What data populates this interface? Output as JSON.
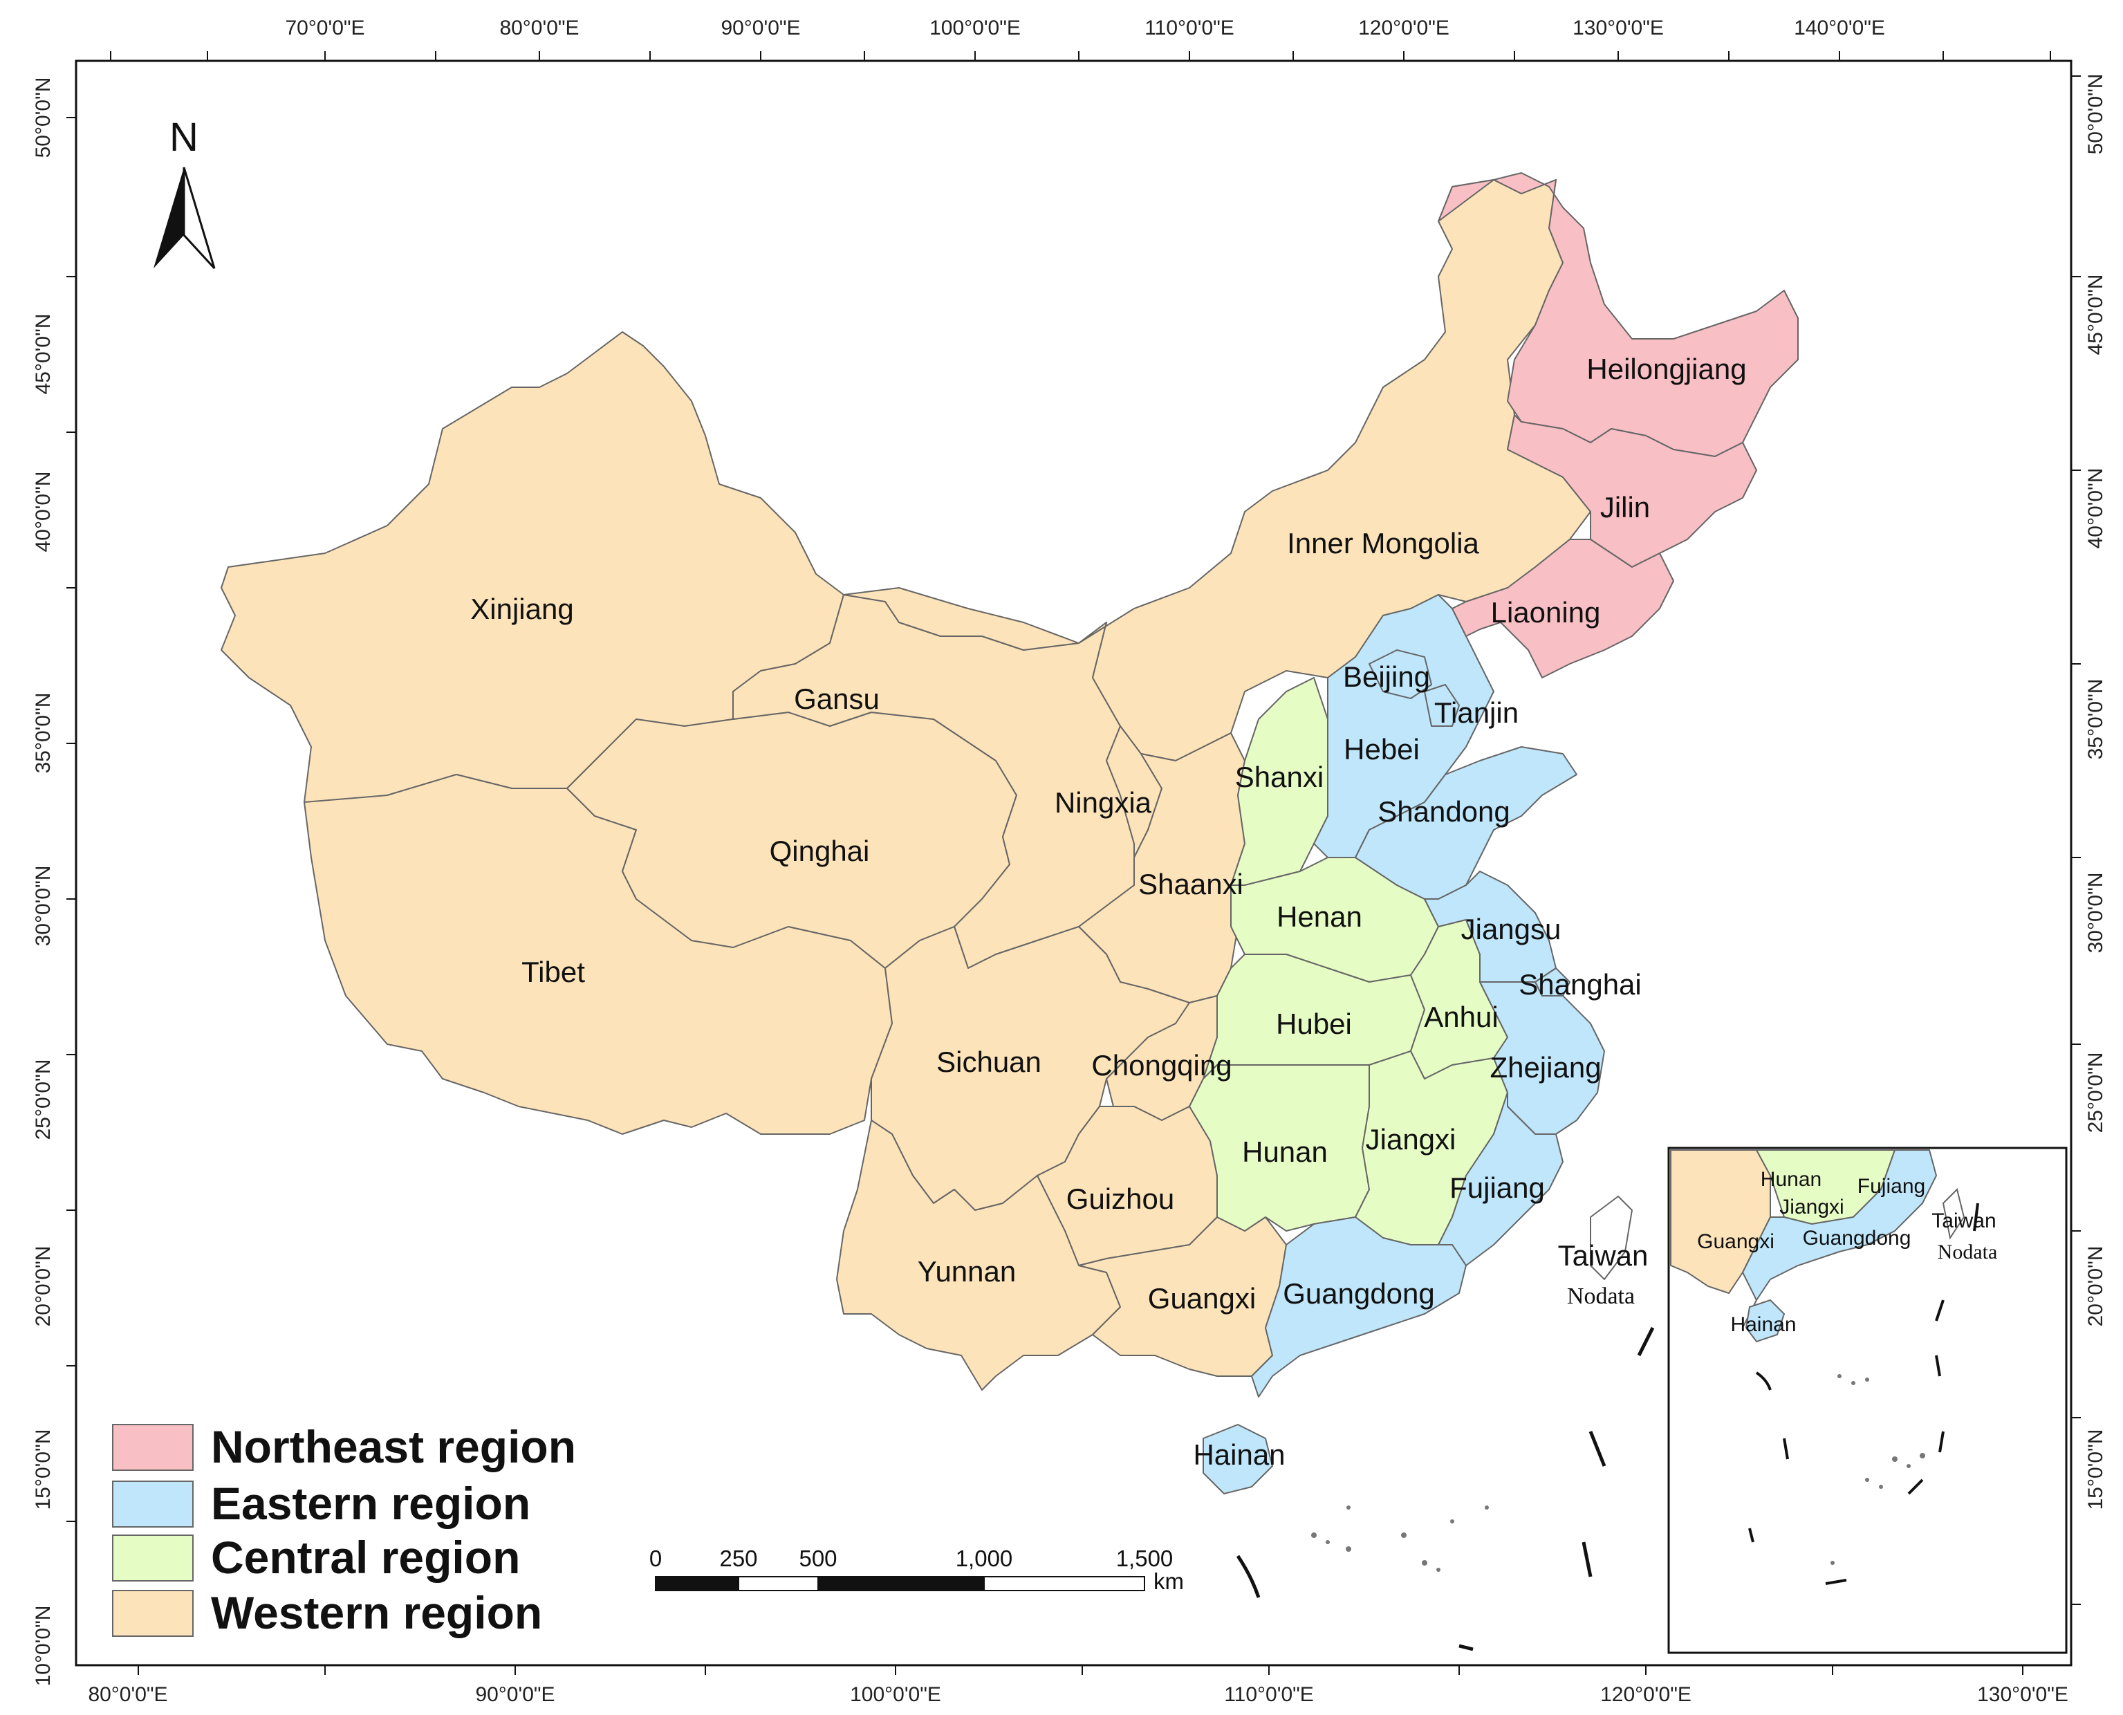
{
  "map": {
    "north_arrow_label": "N",
    "top_axis_labels": [
      "70°0'0\"E",
      "80°0'0\"E",
      "90°0'0\"E",
      "100°0'0\"E",
      "110°0'0\"E",
      "120°0'0\"E",
      "130°0'0\"E",
      "140°0'0\"E"
    ],
    "bottom_axis_labels": [
      "80°0'0\"E",
      "90°0'0\"E",
      "100°0'0\"E",
      "110°0'0\"E",
      "120°0'0\"E",
      "130°0'0\"E"
    ],
    "left_axis_labels": [
      "50°0'0\"N",
      "45°0'0\"N",
      "40°0'0\"N",
      "35°0'0\"N",
      "30°0'0\"N",
      "25°0'0\"N",
      "20°0'0\"N",
      "15°0'0\"N",
      "10°0'0\"N"
    ],
    "right_axis_labels": [
      "50°0'0\"N",
      "45°0'0\"N",
      "40°0'0\"N",
      "35°0'0\"N",
      "30°0'0\"N",
      "25°0'0\"N",
      "20°0'0\"N",
      "15°0'0\"N"
    ],
    "provinces": {
      "heilongjiang": "Heilongjiang",
      "jilin": "Jilin",
      "liaoning": "Liaoning",
      "inner_mongolia": "Inner Mongolia",
      "xinjiang": "Xinjiang",
      "beijing": "Beijing",
      "tianjin": "Tianjin",
      "hebei": "Hebei",
      "gansu": "Gansu",
      "shanxi": "Shanxi",
      "ningxia": "Ningxia",
      "shandong": "Shandong",
      "qinghai": "Qinghai",
      "shaanxi": "Shaanxi",
      "henan": "Henan",
      "jiangsu": "Jiangsu",
      "tibet": "Tibet",
      "shanghai": "Shanghai",
      "hubei": "Hubei",
      "anhui": "Anhui",
      "sichuan": "Sichuan",
      "chongqing": "Chongqing",
      "zhejiang": "Zhejiang",
      "hunan": "Hunan",
      "jiangxi": "Jiangxi",
      "fujiang": "Fujiang",
      "guizhou": "Guizhou",
      "taiwan": "Taiwan",
      "nodata": "Nodata",
      "yunnan": "Yunnan",
      "guangxi": "Guangxi",
      "guangdong": "Guangdong",
      "hainan": "Hainan"
    },
    "inset": {
      "hunan": "Hunan",
      "fujiang": "Fujiang",
      "jiangxi": "Jiangxi",
      "taiwan": "Taiwan",
      "guangxi": "Guangxi",
      "guangdong": "Guangdong",
      "nodata": "Nodata",
      "hainan": "Hainan"
    },
    "legend": [
      {
        "label": "Northeast region",
        "color": "#f8bfc5"
      },
      {
        "label": "Eastern region",
        "color": "#bfe6fb"
      },
      {
        "label": "Central region",
        "color": "#e6fcc5"
      },
      {
        "label": "Western region",
        "color": "#fde3b9"
      }
    ],
    "scale_bar": {
      "ticks": [
        "0",
        "250",
        "500",
        "1,000",
        "1,500"
      ],
      "unit": "km"
    },
    "colors": {
      "northeast": "#f8bfc5",
      "eastern": "#bfe6fb",
      "central": "#e6fcc5",
      "western": "#fde3b9"
    }
  }
}
